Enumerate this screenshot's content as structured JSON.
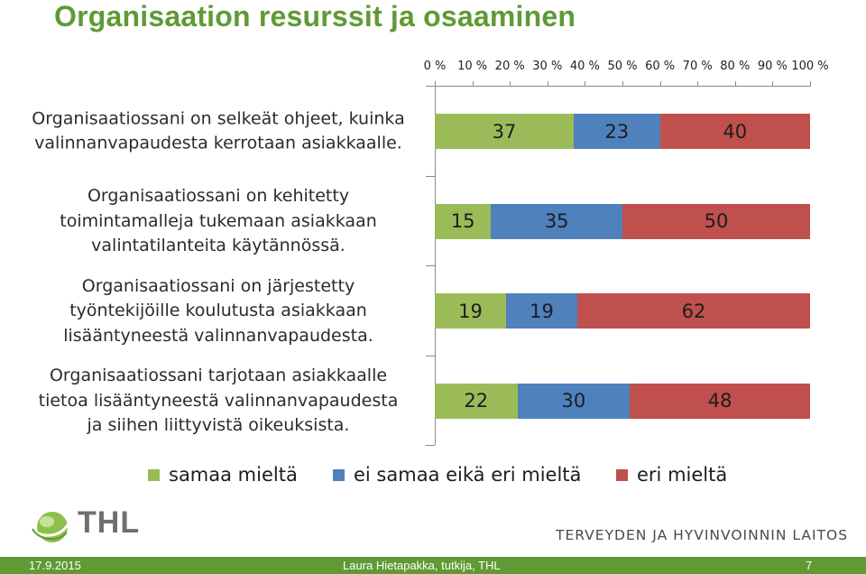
{
  "title": "Organisaation resurssit ja osaaminen",
  "chart_data": {
    "type": "bar",
    "orientation": "horizontal-stacked-100",
    "xlim": [
      0,
      100
    ],
    "x_tick_labels": [
      "0 %",
      "10 %",
      "20 %",
      "30 %",
      "40 %",
      "50 %",
      "60 %",
      "70 %",
      "80 %",
      "90 %",
      "100 %"
    ],
    "categories": [
      [
        "Organisaatiossani on selkeät ohjeet, kuinka",
        "valinnanvapaudesta kerrotaan asiakkaalle."
      ],
      [
        "Organisaatiossani on kehitetty",
        "toimintamalleja tukemaan asiakkaan",
        "valintatilanteita käytännössä."
      ],
      [
        "Organisaatiossani on järjestetty",
        "työntekijöille koulutusta asiakkaan",
        "lisääntyneestä valinnanvapaudesta."
      ],
      [
        "Organisaatiossani tarjotaan asiakkaalle",
        "tietoa lisääntyneestä valinnanvapaudesta",
        "ja siihen liittyvistä oikeuksista."
      ]
    ],
    "series": [
      {
        "name": "samaa mieltä",
        "color": "#9bbb59",
        "values": [
          37,
          15,
          19,
          22
        ]
      },
      {
        "name": "ei samaa eikä eri mieltä",
        "color": "#4f81bd",
        "values": [
          23,
          35,
          19,
          30
        ]
      },
      {
        "name": "eri mieltä",
        "color": "#c0504d",
        "values": [
          40,
          50,
          62,
          48
        ]
      }
    ],
    "legend_position": "bottom"
  },
  "logo_text": "THL",
  "organization": "TERVEYDEN JA HYVINVOINNIN LAITOS",
  "footer": {
    "date": "17.9.2015",
    "author": "Laura Hietapakka, tutkija, THL",
    "page": "7"
  }
}
